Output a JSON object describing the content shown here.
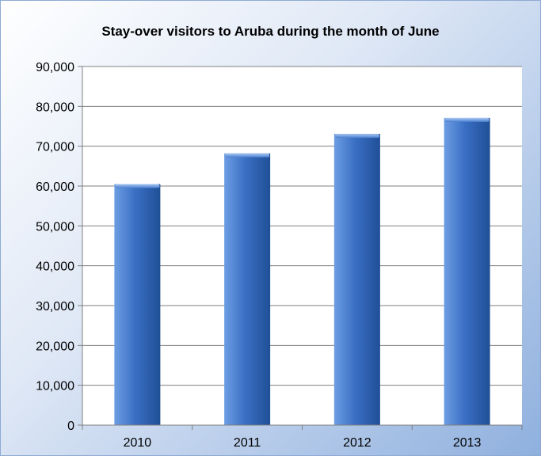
{
  "chart_data": {
    "type": "bar",
    "title": "Stay-over visitors to Aruba during the month of June",
    "xlabel": "",
    "ylabel": "",
    "categories": [
      "2010",
      "2011",
      "2012",
      "2013"
    ],
    "values": [
      60500,
      68200,
      73100,
      77100
    ],
    "ylim": [
      0,
      90000
    ],
    "yticks": [
      0,
      10000,
      20000,
      30000,
      40000,
      50000,
      60000,
      70000,
      80000,
      90000
    ],
    "ytick_labels": [
      "0",
      "10,000",
      "20,000",
      "30,000",
      "40,000",
      "50,000",
      "60,000",
      "70,000",
      "80,000",
      "90,000"
    ],
    "grid": true,
    "legend": "none",
    "colors": {
      "bar_light": "#6d9ee3",
      "bar_mid": "#3a6fc4",
      "bar_dark": "#1f4f96",
      "plot_background": "#ffffff",
      "frame_border": "#8eaad3"
    }
  }
}
